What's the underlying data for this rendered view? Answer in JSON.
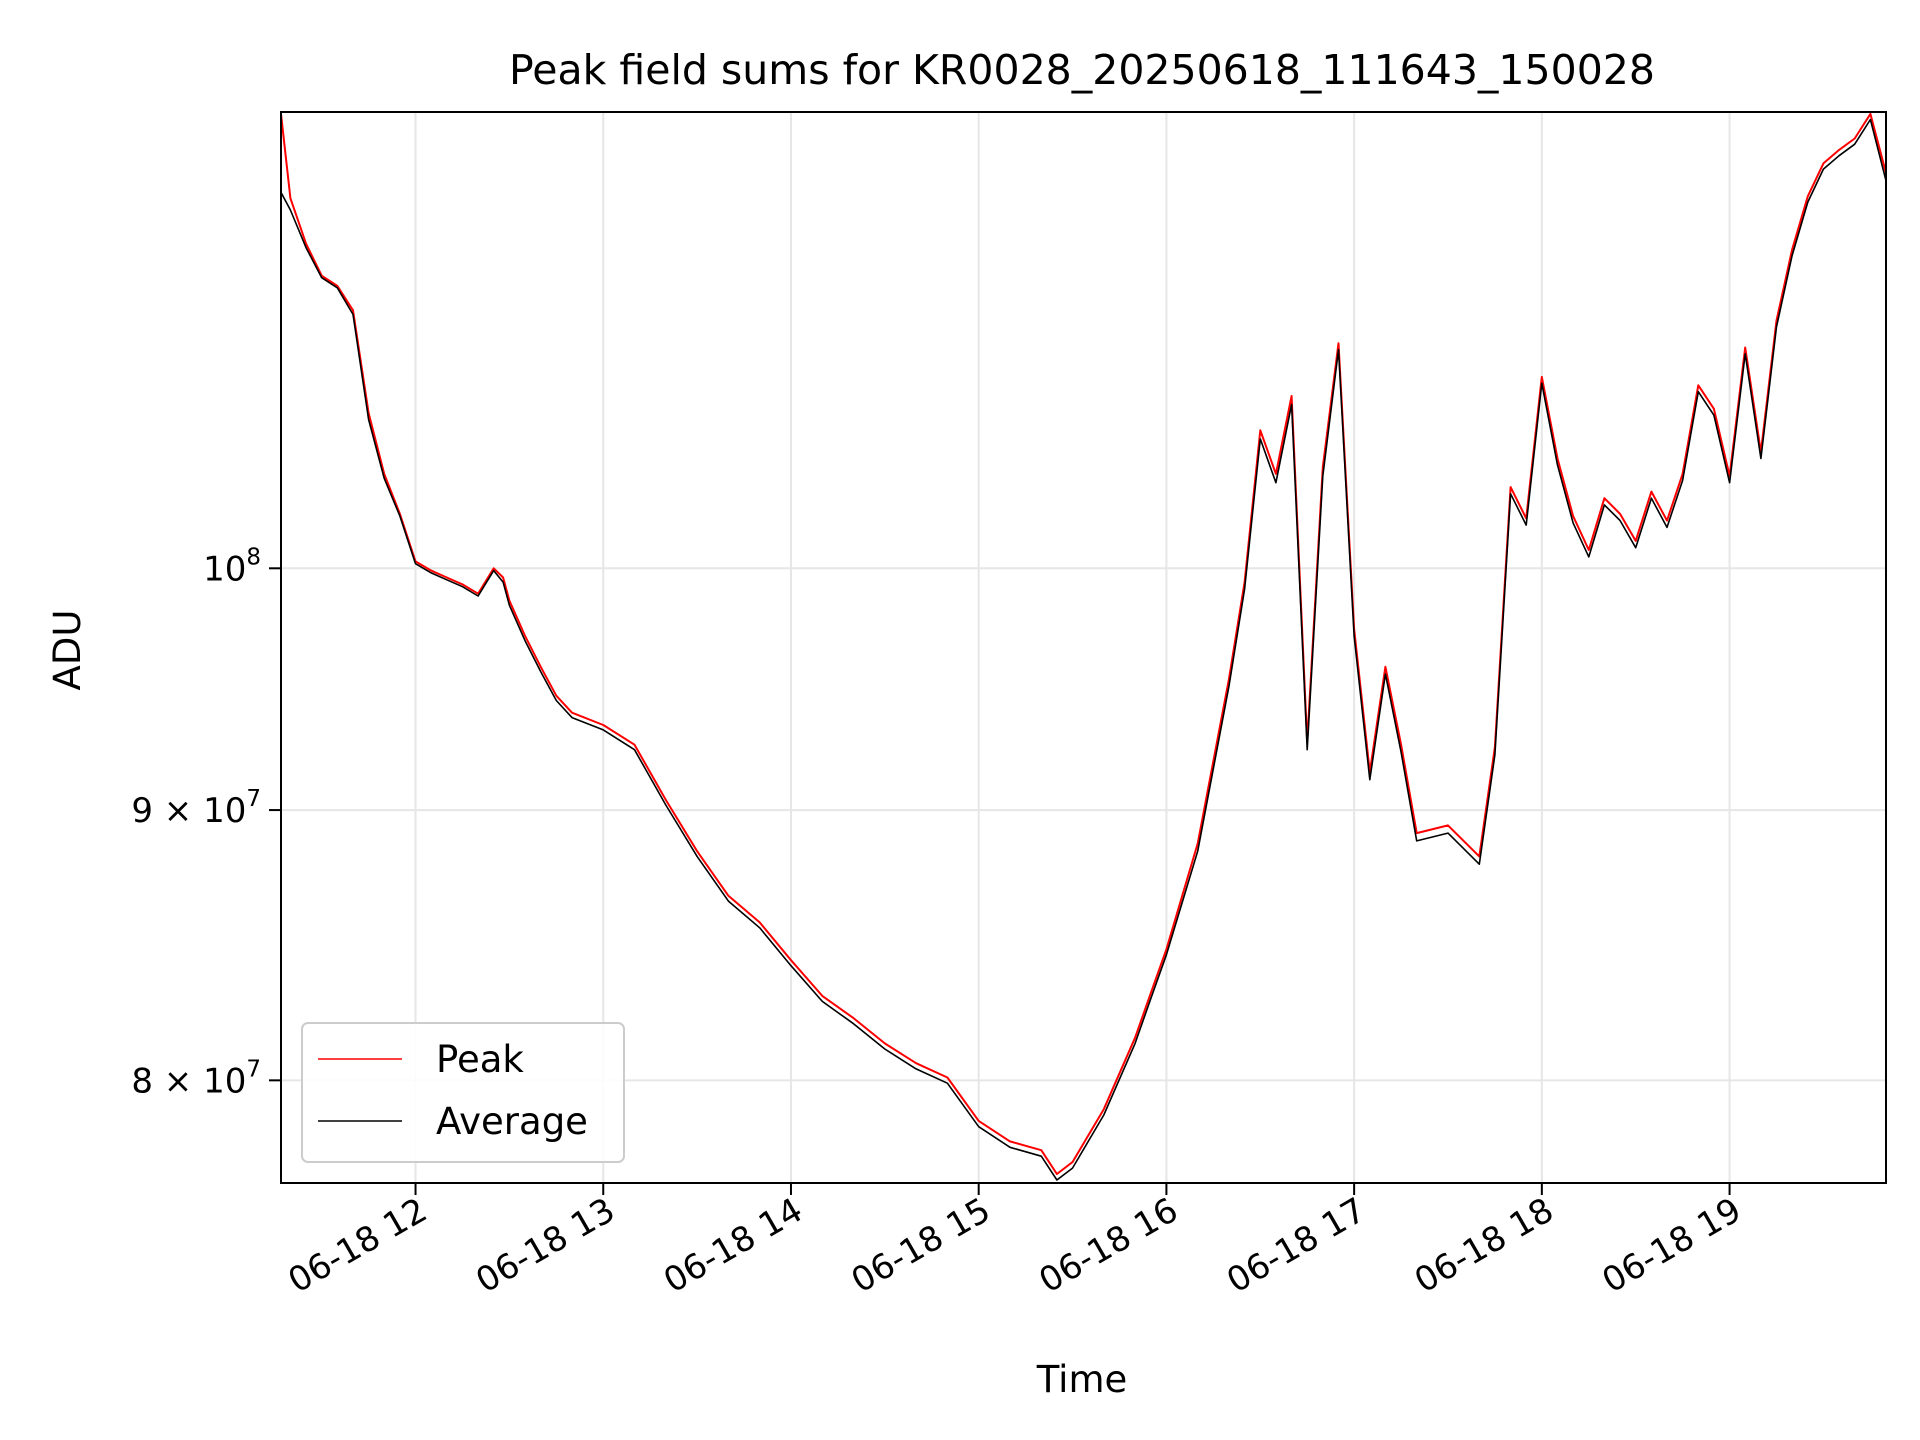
{
  "chart_data": {
    "type": "line",
    "title": "Peak field sums for KR0028_20250618_111643_150028",
    "xlabel": "Time",
    "ylabel": "ADU",
    "yscale": "log",
    "xlim": [
      "2025-06-18 11:17",
      "2025-06-18 19:50"
    ],
    "ylim": [
      76500000,
      122000000
    ],
    "grid": true,
    "legend": {
      "position": "lower-left"
    },
    "x_ticks": [
      {
        "value": "2025-06-18 12:00",
        "label": "06-18 12"
      },
      {
        "value": "2025-06-18 13:00",
        "label": "06-18 13"
      },
      {
        "value": "2025-06-18 14:00",
        "label": "06-18 14"
      },
      {
        "value": "2025-06-18 15:00",
        "label": "06-18 15"
      },
      {
        "value": "2025-06-18 16:00",
        "label": "06-18 16"
      },
      {
        "value": "2025-06-18 17:00",
        "label": "06-18 17"
      },
      {
        "value": "2025-06-18 18:00",
        "label": "06-18 18"
      },
      {
        "value": "2025-06-18 19:00",
        "label": "06-18 19"
      }
    ],
    "y_ticks": [
      {
        "value": 100000000,
        "base": "10",
        "exp": "8"
      },
      {
        "value": 90000000,
        "base": "9 × 10",
        "exp": "7"
      },
      {
        "value": 80000000,
        "base": "8 × 10",
        "exp": "7"
      }
    ],
    "x": [
      "11:17",
      "11:20",
      "11:25",
      "11:30",
      "11:35",
      "11:40",
      "11:45",
      "11:50",
      "11:55",
      "12:00",
      "12:05",
      "12:10",
      "12:15",
      "12:20",
      "12:25",
      "12:28",
      "12:30",
      "12:35",
      "12:40",
      "12:45",
      "12:50",
      "13:00",
      "13:10",
      "13:20",
      "13:30",
      "13:40",
      "13:50",
      "14:00",
      "14:10",
      "14:20",
      "14:30",
      "14:40",
      "14:50",
      "15:00",
      "15:10",
      "15:20",
      "15:25",
      "15:30",
      "15:40",
      "15:50",
      "15:55",
      "16:00",
      "16:10",
      "16:20",
      "16:25",
      "16:30",
      "16:35",
      "16:40",
      "16:45",
      "16:50",
      "16:55",
      "17:00",
      "17:05",
      "17:10",
      "17:15",
      "17:20",
      "17:30",
      "17:40",
      "17:45",
      "17:50",
      "17:55",
      "18:00",
      "18:05",
      "18:10",
      "18:15",
      "18:20",
      "18:25",
      "18:30",
      "18:35",
      "18:40",
      "18:45",
      "18:50",
      "18:55",
      "19:00",
      "19:05",
      "19:10",
      "19:15",
      "19:20",
      "19:25",
      "19:30",
      "19:35",
      "19:40",
      "19:45",
      "19:50"
    ],
    "series": [
      {
        "name": "Peak",
        "color": "#ff0000",
        "values": [
          121900000,
          117500000,
          115200000,
          113600000,
          113100000,
          111900000,
          107000000,
          104200000,
          102400000,
          100300000,
          99900000,
          99600000,
          99300000,
          98900000,
          100000000,
          99600000,
          98600000,
          97100000,
          95800000,
          94600000,
          93900000,
          93400000,
          92600000,
          90400000,
          88400000,
          86700000,
          85700000,
          84300000,
          83000000,
          82200000,
          81300000,
          80600000,
          80100000,
          78600000,
          77900000,
          77600000,
          76800000,
          77200000,
          79000000,
          81500000,
          83100000,
          84700000,
          88700000,
          95300000,
          99400000,
          106200000,
          104200000,
          107800000,
          92700000,
          104500000,
          110300000,
          97400000,
          91500000,
          95800000,
          92600000,
          89100000,
          89400000,
          88200000,
          92500000,
          103600000,
          102200000,
          108700000,
          104900000,
          102300000,
          100800000,
          103100000,
          102400000,
          101200000,
          103400000,
          102100000,
          104200000,
          108300000,
          107200000,
          104100000,
          110100000,
          105200000,
          111400000,
          114900000,
          117600000,
          119300000,
          120000000,
          120600000,
          121900000,
          118800000
        ]
      },
      {
        "name": "Average",
        "color": "#000000",
        "values": [
          117800000,
          116900000,
          115000000,
          113500000,
          113000000,
          111700000,
          106700000,
          104000000,
          102300000,
          100200000,
          99800000,
          99500000,
          99200000,
          98800000,
          99900000,
          99400000,
          98400000,
          96900000,
          95600000,
          94400000,
          93700000,
          93200000,
          92400000,
          90200000,
          88200000,
          86500000,
          85500000,
          84100000,
          82800000,
          82000000,
          81100000,
          80400000,
          79900000,
          78400000,
          77700000,
          77400000,
          76600000,
          77000000,
          78800000,
          81300000,
          82900000,
          84500000,
          88400000,
          95000000,
          99100000,
          105800000,
          103800000,
          107400000,
          92400000,
          104100000,
          110000000,
          97100000,
          91200000,
          95500000,
          92300000,
          88800000,
          89100000,
          87900000,
          92200000,
          103300000,
          101900000,
          108400000,
          104600000,
          102000000,
          100500000,
          102800000,
          102100000,
          100900000,
          103100000,
          101800000,
          103900000,
          108000000,
          106900000,
          103800000,
          109800000,
          104900000,
          111100000,
          114600000,
          117300000,
          119000000,
          119700000,
          120300000,
          121600000,
          118400000
        ]
      }
    ]
  }
}
